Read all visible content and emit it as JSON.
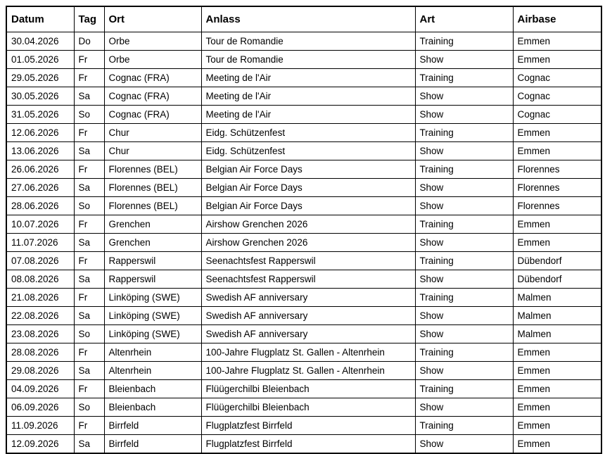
{
  "table": {
    "columns": [
      {
        "key": "datum",
        "label": "Datum"
      },
      {
        "key": "tag",
        "label": "Tag"
      },
      {
        "key": "ort",
        "label": "Ort"
      },
      {
        "key": "anlass",
        "label": "Anlass"
      },
      {
        "key": "art",
        "label": "Art"
      },
      {
        "key": "airbase",
        "label": "Airbase"
      }
    ],
    "rows": [
      [
        "30.04.2026",
        "Do",
        "Orbe",
        "Tour de Romandie",
        "Training",
        "Emmen"
      ],
      [
        "01.05.2026",
        "Fr",
        "Orbe",
        "Tour de Romandie",
        "Show",
        "Emmen"
      ],
      [
        "29.05.2026",
        "Fr",
        "Cognac (FRA)",
        "Meeting de l'Air",
        "Training",
        "Cognac"
      ],
      [
        "30.05.2026",
        "Sa",
        "Cognac (FRA)",
        "Meeting de l'Air",
        "Show",
        "Cognac"
      ],
      [
        "31.05.2026",
        "So",
        "Cognac (FRA)",
        "Meeting de l'Air",
        "Show",
        "Cognac"
      ],
      [
        "12.06.2026",
        "Fr",
        "Chur",
        "Eidg. Schützenfest",
        "Training",
        "Emmen"
      ],
      [
        "13.06.2026",
        "Sa",
        "Chur",
        "Eidg. Schützenfest",
        "Show",
        "Emmen"
      ],
      [
        "26.06.2026",
        "Fr",
        "Florennes (BEL)",
        "Belgian Air Force Days",
        "Training",
        "Florennes"
      ],
      [
        "27.06.2026",
        "Sa",
        "Florennes (BEL)",
        "Belgian Air Force Days",
        "Show",
        "Florennes"
      ],
      [
        "28.06.2026",
        "So",
        "Florennes (BEL)",
        "Belgian Air Force Days",
        "Show",
        "Florennes"
      ],
      [
        "10.07.2026",
        "Fr",
        "Grenchen",
        "Airshow Grenchen 2026",
        "Training",
        "Emmen"
      ],
      [
        "11.07.2026",
        "Sa",
        "Grenchen",
        "Airshow Grenchen 2026",
        "Show",
        "Emmen"
      ],
      [
        "07.08.2026",
        "Fr",
        "Rapperswil",
        "Seenachtsfest Rapperswil",
        "Training",
        "Dübendorf"
      ],
      [
        "08.08.2026",
        "Sa",
        "Rapperswil",
        "Seenachtsfest Rapperswil",
        "Show",
        "Dübendorf"
      ],
      [
        "21.08.2026",
        "Fr",
        "Linköping (SWE)",
        "Swedish AF anniversary",
        "Training",
        "Malmen"
      ],
      [
        "22.08.2026",
        "Sa",
        "Linköping (SWE)",
        "Swedish AF anniversary",
        "Show",
        "Malmen"
      ],
      [
        "23.08.2026",
        "So",
        "Linköping (SWE)",
        "Swedish AF anniversary",
        "Show",
        "Malmen"
      ],
      [
        "28.08.2026",
        "Fr",
        "Altenrhein",
        "100-Jahre Flugplatz St. Gallen - Altenrhein",
        "Training",
        "Emmen"
      ],
      [
        "29.08.2026",
        "Sa",
        "Altenrhein",
        "100-Jahre Flugplatz St. Gallen - Altenrhein",
        "Show",
        "Emmen"
      ],
      [
        "04.09.2026",
        "Fr",
        "Bleienbach",
        "Flüügerchilbi Bleienbach",
        "Training",
        "Emmen"
      ],
      [
        "06.09.2026",
        "So",
        "Bleienbach",
        "Flüügerchilbi Bleienbach",
        "Show",
        "Emmen"
      ],
      [
        "11.09.2026",
        "Fr",
        "Birrfeld",
        "Flugplatzfest Birrfeld",
        "Training",
        "Emmen"
      ],
      [
        "12.09.2026",
        "Sa",
        "Birrfeld",
        "Flugplatzfest Birrfeld",
        "Show",
        "Emmen"
      ]
    ]
  }
}
